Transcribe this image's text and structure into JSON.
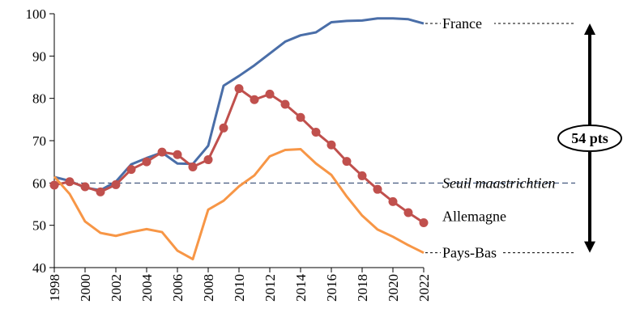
{
  "chart_data": {
    "type": "line",
    "x": [
      1998,
      1999,
      2000,
      2001,
      2002,
      2003,
      2004,
      2005,
      2006,
      2007,
      2008,
      2009,
      2010,
      2011,
      2012,
      2013,
      2014,
      2015,
      2016,
      2017,
      2018,
      2019,
      2020,
      2021,
      2022
    ],
    "series": [
      {
        "name": "France",
        "color": "#4a6ea8",
        "markers": false,
        "values": [
          61.4,
          60.5,
          58.9,
          58.3,
          60.3,
          64.4,
          65.9,
          67.2,
          64.6,
          64.5,
          68.8,
          83.0,
          85.3,
          87.8,
          90.6,
          93.4,
          94.9,
          95.6,
          98.0,
          98.3,
          98.4,
          98.9,
          98.9,
          98.7,
          97.7
        ]
      },
      {
        "name": "Allemagne",
        "color": "#c0504d",
        "markers": true,
        "values": [
          59.5,
          60.3,
          59.1,
          57.9,
          59.6,
          63.2,
          65.0,
          67.3,
          66.7,
          63.8,
          65.5,
          73.0,
          82.3,
          79.7,
          81.0,
          78.6,
          75.5,
          72.0,
          69.0,
          65.1,
          61.7,
          58.5,
          55.6,
          53.0,
          50.6
        ]
      },
      {
        "name": "Pays-Bas",
        "color": "#f79646",
        "markers": false,
        "values": [
          61.5,
          57.4,
          50.9,
          48.2,
          47.5,
          48.4,
          49.1,
          48.4,
          44.0,
          42.0,
          53.7,
          55.8,
          59.2,
          61.8,
          66.3,
          67.8,
          68.0,
          64.6,
          61.9,
          56.8,
          52.3,
          49.0,
          47.3,
          45.3,
          43.5
        ]
      }
    ],
    "threshold": {
      "value": 60,
      "label": "Seuil maastrichtien",
      "color": "#1f3864"
    },
    "gap_annotation": {
      "label": "54 pts",
      "from": 43.5,
      "to": 97.7
    },
    "ylim": [
      40,
      100
    ],
    "yticks": [
      40,
      50,
      60,
      70,
      80,
      90,
      100
    ],
    "xticks": [
      1998,
      2000,
      2002,
      2004,
      2006,
      2008,
      2010,
      2012,
      2014,
      2016,
      2018,
      2020,
      2022
    ],
    "grid": false
  }
}
